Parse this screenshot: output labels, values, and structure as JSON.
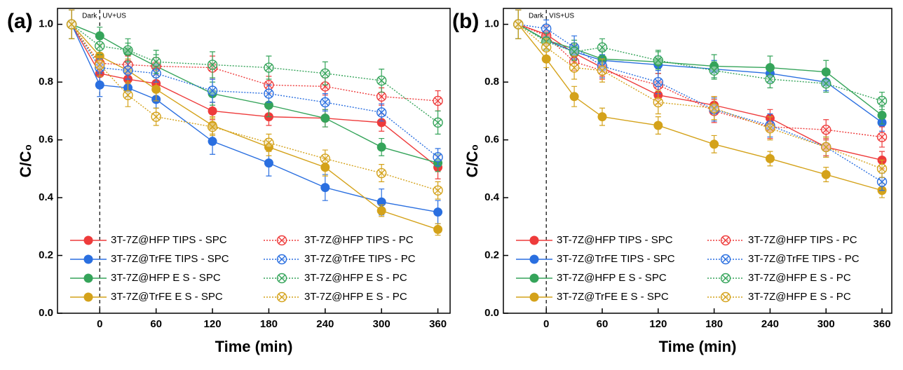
{
  "chart_data": [
    {
      "type": "line",
      "panel_label": "(a)",
      "x_label": "Time (min)",
      "y_label": "C/C₀",
      "annotations": [
        "Dark",
        "UV+US"
      ],
      "divider_x": 0,
      "x": [
        -30,
        0,
        30,
        60,
        120,
        180,
        240,
        300,
        360
      ],
      "xlim": [
        -45,
        373
      ],
      "ylim": [
        0,
        1.055
      ],
      "xticks": [
        0,
        60,
        120,
        180,
        240,
        300,
        360
      ],
      "yticks": [
        {
          "value": 0,
          "label": "0.0"
        },
        0.2,
        0.4,
        0.6,
        0.8,
        {
          "value": 1,
          "label": "1.0"
        }
      ],
      "series": [
        {
          "name": "3T-7Z@HFP TIPS - SPC",
          "color": "#ee3b3b",
          "style": "solid",
          "marker": "filled",
          "values": [
            1.0,
            0.83,
            0.81,
            0.795,
            0.7,
            0.68,
            0.675,
            0.66,
            0.505
          ],
          "errors": [
            0.05,
            0.03,
            0.03,
            0.03,
            0.03,
            0.03,
            0.03,
            0.03,
            0.04
          ]
        },
        {
          "name": "3T-7Z@TrFE TIPS - SPC",
          "color": "#2a6fe0",
          "style": "solid",
          "marker": "filled",
          "values": [
            1.0,
            0.79,
            0.78,
            0.74,
            0.595,
            0.52,
            0.435,
            0.385,
            0.35
          ],
          "errors": [
            0.05,
            0.04,
            0.03,
            0.03,
            0.045,
            0.045,
            0.045,
            0.045,
            0.04
          ]
        },
        {
          "name": "3T-7Z@HFP E S - SPC",
          "color": "#35a45a",
          "style": "solid",
          "marker": "filled",
          "values": [
            1.0,
            0.96,
            0.905,
            0.855,
            0.76,
            0.72,
            0.675,
            0.575,
            0.52
          ],
          "errors": [
            0.05,
            0.03,
            0.03,
            0.04,
            0.04,
            0.04,
            0.03,
            0.03,
            0.03
          ]
        },
        {
          "name": "3T-7Z@TrFE E S - SPC",
          "color": "#d4a21a",
          "style": "solid",
          "marker": "filled",
          "values": [
            1.0,
            0.89,
            0.84,
            0.775,
            0.65,
            0.575,
            0.505,
            0.355,
            0.29
          ],
          "errors": [
            0.05,
            0.04,
            0.04,
            0.04,
            0.03,
            0.03,
            0.03,
            0.02,
            0.02
          ]
        },
        {
          "name": "3T-7Z@HFP TIPS - PC",
          "color": "#ee3b3b",
          "style": "dotted",
          "marker": "open",
          "values": [
            1.0,
            0.865,
            0.86,
            0.855,
            0.85,
            0.79,
            0.785,
            0.75,
            0.735
          ],
          "errors": [
            0.05,
            0.03,
            0.03,
            0.03,
            0.04,
            0.03,
            0.03,
            0.03,
            0.035
          ]
        },
        {
          "name": "3T-7Z@TrFE TIPS - PC",
          "color": "#2a6fe0",
          "style": "dotted",
          "marker": "open",
          "values": [
            1.0,
            0.85,
            0.84,
            0.83,
            0.77,
            0.76,
            0.73,
            0.695,
            0.54
          ],
          "errors": [
            0.05,
            0.03,
            0.03,
            0.03,
            0.04,
            0.03,
            0.03,
            0.03,
            0.03
          ]
        },
        {
          "name": "3T-7Z@HFP E S - PC",
          "color": "#35a45a",
          "style": "dotted",
          "marker": "open",
          "values": [
            1.0,
            0.925,
            0.91,
            0.87,
            0.86,
            0.85,
            0.83,
            0.805,
            0.66
          ],
          "errors": [
            0.05,
            0.03,
            0.04,
            0.04,
            0.045,
            0.04,
            0.04,
            0.04,
            0.04
          ]
        },
        {
          "name": "3T-7Z@HFP E S - PC",
          "color": "#d4a21a",
          "style": "dotted",
          "marker": "open",
          "values": [
            1.0,
            0.86,
            0.755,
            0.68,
            0.645,
            0.59,
            0.535,
            0.485,
            0.425
          ],
          "errors": [
            0.05,
            0.04,
            0.04,
            0.03,
            0.03,
            0.03,
            0.03,
            0.03,
            0.03
          ]
        }
      ]
    },
    {
      "type": "line",
      "panel_label": "(b)",
      "x_label": "Time (min)",
      "y_label": "C/C₀",
      "annotations": [
        "Dark",
        "VIS+US"
      ],
      "divider_x": 0,
      "x": [
        -30,
        0,
        30,
        60,
        120,
        180,
        240,
        300,
        360
      ],
      "xlim": [
        -46,
        370.5
      ],
      "ylim": [
        0,
        1.055
      ],
      "xticks": [
        0,
        60,
        120,
        180,
        240,
        300,
        360
      ],
      "yticks": [
        {
          "value": 0,
          "label": "0.0"
        },
        0.2,
        0.4,
        0.6,
        0.8,
        {
          "value": 1,
          "label": "1.0"
        }
      ],
      "series": [
        {
          "name": "3T-7Z@HFP TIPS - SPC",
          "color": "#ee3b3b",
          "style": "solid",
          "marker": "filled",
          "values": [
            1.0,
            0.965,
            0.9,
            0.85,
            0.755,
            0.72,
            0.675,
            0.575,
            0.53
          ],
          "errors": [
            0.05,
            0.03,
            0.03,
            0.03,
            0.03,
            0.03,
            0.03,
            0.03,
            0.03
          ]
        },
        {
          "name": "3T-7Z@TrFE TIPS - SPC",
          "color": "#2a6fe0",
          "style": "solid",
          "marker": "filled",
          "values": [
            1.0,
            0.945,
            0.905,
            0.875,
            0.86,
            0.845,
            0.83,
            0.8,
            0.66
          ],
          "errors": [
            0.05,
            0.03,
            0.03,
            0.03,
            0.03,
            0.03,
            0.03,
            0.03,
            0.03
          ]
        },
        {
          "name": "3T-7Z@HFP E S - SPC",
          "color": "#35a45a",
          "style": "solid",
          "marker": "filled",
          "values": [
            1.0,
            0.945,
            0.915,
            0.88,
            0.87,
            0.855,
            0.85,
            0.835,
            0.685
          ],
          "errors": [
            0.05,
            0.03,
            0.03,
            0.03,
            0.04,
            0.04,
            0.04,
            0.04,
            0.03
          ]
        },
        {
          "name": "3T-7Z@TrFE E S - SPC",
          "color": "#d4a21a",
          "style": "solid",
          "marker": "filled",
          "values": [
            1.0,
            0.88,
            0.75,
            0.68,
            0.65,
            0.585,
            0.535,
            0.48,
            0.425
          ],
          "errors": [
            0.05,
            0.03,
            0.035,
            0.03,
            0.03,
            0.03,
            0.025,
            0.025,
            0.025
          ]
        },
        {
          "name": "3T-7Z@HFP TIPS - PC",
          "color": "#ee3b3b",
          "style": "dotted",
          "marker": "open",
          "values": [
            1.0,
            0.96,
            0.87,
            0.84,
            0.79,
            0.7,
            0.645,
            0.635,
            0.61
          ],
          "errors": [
            0.05,
            0.03,
            0.03,
            0.03,
            0.04,
            0.04,
            0.04,
            0.035,
            0.035
          ]
        },
        {
          "name": "3T-7Z@TrFE TIPS - PC",
          "color": "#2a6fe0",
          "style": "dotted",
          "marker": "open",
          "values": [
            1.0,
            0.985,
            0.92,
            0.855,
            0.8,
            0.705,
            0.65,
            0.575,
            0.455
          ],
          "errors": [
            0.05,
            0.03,
            0.04,
            0.04,
            0.04,
            0.04,
            0.04,
            0.035,
            0.03
          ]
        },
        {
          "name": "3T-7Z@HFP E S - PC",
          "color": "#35a45a",
          "style": "dotted",
          "marker": "open",
          "values": [
            1.0,
            0.94,
            0.905,
            0.92,
            0.875,
            0.84,
            0.81,
            0.795,
            0.735
          ],
          "errors": [
            0.05,
            0.03,
            0.03,
            0.03,
            0.03,
            0.03,
            0.03,
            0.03,
            0.03
          ]
        },
        {
          "name": "3T-7Z@HFP E S - PC",
          "color": "#d4a21a",
          "style": "dotted",
          "marker": "open",
          "values": [
            1.0,
            0.92,
            0.85,
            0.84,
            0.73,
            0.71,
            0.64,
            0.575,
            0.5
          ],
          "errors": [
            0.05,
            0.03,
            0.04,
            0.04,
            0.04,
            0.04,
            0.04,
            0.035,
            0.03
          ]
        }
      ]
    }
  ]
}
